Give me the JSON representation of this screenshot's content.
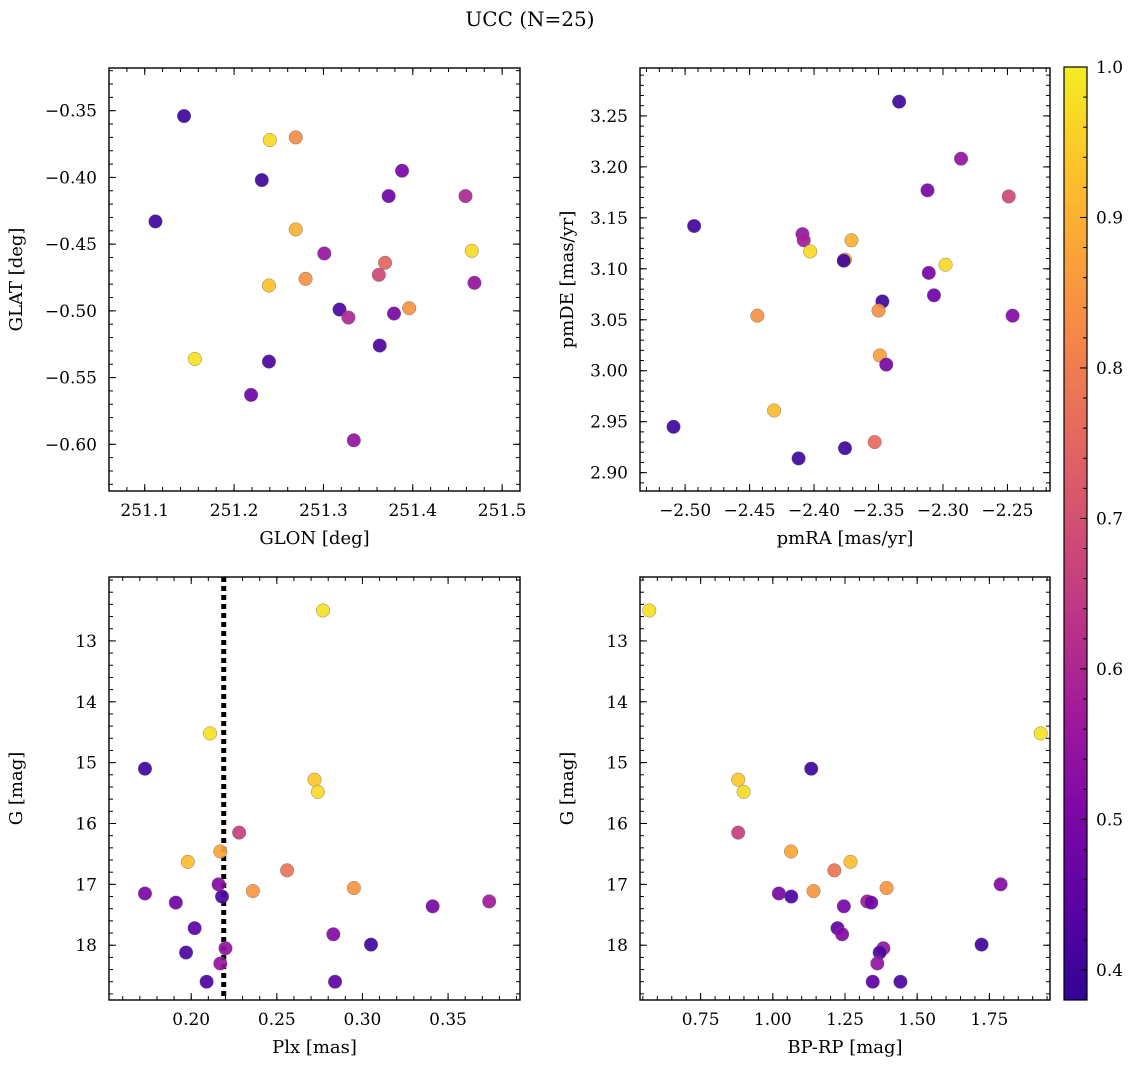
{
  "figure": {
    "title": "UCC (N=25)"
  },
  "colormap": {
    "name": "plasma",
    "range": [
      0.38,
      1.0
    ],
    "ticks": [
      0.4,
      0.5,
      0.6,
      0.7,
      0.8,
      0.9,
      1.0
    ],
    "tick_labels": [
      "0.4",
      "0.5",
      "0.6",
      "0.7",
      "0.8",
      "0.9",
      "1.0"
    ]
  },
  "chart_data": [
    {
      "type": "scatter",
      "panel": "top-left",
      "xlabel": "GLON [deg]",
      "ylabel": "GLAT [deg]",
      "xlim": [
        251.06,
        251.52
      ],
      "ylim": [
        -0.635,
        -0.318
      ],
      "yinverted": false,
      "xticks": [
        251.1,
        251.2,
        251.3,
        251.4,
        251.5
      ],
      "xtick_labels": [
        "251.1",
        "251.2",
        "251.3",
        "251.4",
        "251.5"
      ],
      "yticks": [
        -0.35,
        -0.4,
        -0.45,
        -0.5,
        -0.55,
        -0.6
      ],
      "ytick_labels": [
        "−0.35",
        "−0.40",
        "−0.45",
        "−0.50",
        "−0.55",
        "−0.60"
      ],
      "points": [
        {
          "x": 251.144,
          "y": -0.354,
          "c": 0.4
        },
        {
          "x": 251.112,
          "y": -0.433,
          "c": 0.4
        },
        {
          "x": 251.231,
          "y": -0.402,
          "c": 0.4
        },
        {
          "x": 251.24,
          "y": -0.372,
          "c": 0.97
        },
        {
          "x": 251.269,
          "y": -0.37,
          "c": 0.83
        },
        {
          "x": 251.388,
          "y": -0.395,
          "c": 0.5
        },
        {
          "x": 251.373,
          "y": -0.414,
          "c": 0.48
        },
        {
          "x": 251.459,
          "y": -0.414,
          "c": 0.6
        },
        {
          "x": 251.269,
          "y": -0.439,
          "c": 0.9
        },
        {
          "x": 251.466,
          "y": -0.455,
          "c": 0.97
        },
        {
          "x": 251.301,
          "y": -0.457,
          "c": 0.55
        },
        {
          "x": 251.369,
          "y": -0.464,
          "c": 0.75
        },
        {
          "x": 251.362,
          "y": -0.473,
          "c": 0.68
        },
        {
          "x": 251.28,
          "y": -0.476,
          "c": 0.84
        },
        {
          "x": 251.239,
          "y": -0.481,
          "c": 0.93
        },
        {
          "x": 251.469,
          "y": -0.479,
          "c": 0.55
        },
        {
          "x": 251.318,
          "y": -0.499,
          "c": 0.42
        },
        {
          "x": 251.396,
          "y": -0.498,
          "c": 0.84
        },
        {
          "x": 251.379,
          "y": -0.502,
          "c": 0.5
        },
        {
          "x": 251.328,
          "y": -0.505,
          "c": 0.6
        },
        {
          "x": 251.363,
          "y": -0.526,
          "c": 0.42
        },
        {
          "x": 251.156,
          "y": -0.536,
          "c": 0.98
        },
        {
          "x": 251.239,
          "y": -0.538,
          "c": 0.42
        },
        {
          "x": 251.219,
          "y": -0.563,
          "c": 0.48
        },
        {
          "x": 251.334,
          "y": -0.597,
          "c": 0.55
        }
      ]
    },
    {
      "type": "scatter",
      "panel": "top-right",
      "xlabel": "pmRA [mas/yr]",
      "ylabel": "pmDE [mas/yr]",
      "xlim": [
        -2.535,
        -2.217
      ],
      "ylim": [
        2.882,
        3.297
      ],
      "yinverted": false,
      "xticks": [
        -2.5,
        -2.45,
        -2.4,
        -2.35,
        -2.3,
        -2.25
      ],
      "xtick_labels": [
        "−2.50",
        "−2.45",
        "−2.40",
        "−2.35",
        "−2.30",
        "−2.25"
      ],
      "yticks": [
        2.9,
        2.95,
        3.0,
        3.05,
        3.1,
        3.15,
        3.2,
        3.25
      ],
      "ytick_labels": [
        "2.90",
        "2.95",
        "3.00",
        "3.05",
        "3.10",
        "3.15",
        "3.20",
        "3.25"
      ],
      "points": [
        {
          "x": -2.334,
          "y": 3.264,
          "c": 0.4
        },
        {
          "x": -2.286,
          "y": 3.208,
          "c": 0.55
        },
        {
          "x": -2.312,
          "y": 3.177,
          "c": 0.5
        },
        {
          "x": -2.249,
          "y": 3.171,
          "c": 0.68
        },
        {
          "x": -2.493,
          "y": 3.142,
          "c": 0.4
        },
        {
          "x": -2.409,
          "y": 3.134,
          "c": 0.55
        },
        {
          "x": -2.408,
          "y": 3.128,
          "c": 0.58
        },
        {
          "x": -2.371,
          "y": 3.128,
          "c": 0.9
        },
        {
          "x": -2.403,
          "y": 3.117,
          "c": 0.97
        },
        {
          "x": -2.376,
          "y": 3.109,
          "c": 0.9
        },
        {
          "x": -2.377,
          "y": 3.108,
          "c": 0.4
        },
        {
          "x": -2.298,
          "y": 3.104,
          "c": 0.97
        },
        {
          "x": -2.311,
          "y": 3.096,
          "c": 0.5
        },
        {
          "x": -2.307,
          "y": 3.074,
          "c": 0.48
        },
        {
          "x": -2.347,
          "y": 3.068,
          "c": 0.4
        },
        {
          "x": -2.35,
          "y": 3.059,
          "c": 0.84
        },
        {
          "x": -2.444,
          "y": 3.054,
          "c": 0.84
        },
        {
          "x": -2.246,
          "y": 3.054,
          "c": 0.52
        },
        {
          "x": -2.349,
          "y": 3.015,
          "c": 0.87
        },
        {
          "x": -2.344,
          "y": 3.006,
          "c": 0.5
        },
        {
          "x": -2.431,
          "y": 2.961,
          "c": 0.92
        },
        {
          "x": -2.509,
          "y": 2.945,
          "c": 0.4
        },
        {
          "x": -2.353,
          "y": 2.93,
          "c": 0.76
        },
        {
          "x": -2.376,
          "y": 2.924,
          "c": 0.4
        },
        {
          "x": -2.412,
          "y": 2.914,
          "c": 0.4
        }
      ]
    },
    {
      "type": "scatter",
      "panel": "bottom-left",
      "xlabel": "Plx [mas]",
      "ylabel": "G [mag]",
      "xlim": [
        0.152,
        0.392
      ],
      "ylim": [
        11.95,
        18.9
      ],
      "yinverted": true,
      "vline": 0.219,
      "xticks": [
        0.2,
        0.25,
        0.3,
        0.35
      ],
      "xtick_labels": [
        "0.20",
        "0.25",
        "0.30",
        "0.35"
      ],
      "yticks": [
        13,
        14,
        15,
        16,
        17,
        18
      ],
      "ytick_labels": [
        "13",
        "14",
        "15",
        "16",
        "17",
        "18"
      ],
      "points": [
        {
          "x": 0.277,
          "y": 12.5,
          "c": 0.98
        },
        {
          "x": 0.211,
          "y": 14.52,
          "c": 0.98
        },
        {
          "x": 0.173,
          "y": 15.1,
          "c": 0.4
        },
        {
          "x": 0.272,
          "y": 15.28,
          "c": 0.94
        },
        {
          "x": 0.274,
          "y": 15.48,
          "c": 0.97
        },
        {
          "x": 0.228,
          "y": 16.15,
          "c": 0.66
        },
        {
          "x": 0.217,
          "y": 16.46,
          "c": 0.88
        },
        {
          "x": 0.198,
          "y": 16.63,
          "c": 0.92
        },
        {
          "x": 0.256,
          "y": 16.77,
          "c": 0.78
        },
        {
          "x": 0.216,
          "y": 17.0,
          "c": 0.52
        },
        {
          "x": 0.295,
          "y": 17.06,
          "c": 0.85
        },
        {
          "x": 0.236,
          "y": 17.11,
          "c": 0.85
        },
        {
          "x": 0.173,
          "y": 17.15,
          "c": 0.5
        },
        {
          "x": 0.218,
          "y": 17.2,
          "c": 0.42
        },
        {
          "x": 0.374,
          "y": 17.28,
          "c": 0.57
        },
        {
          "x": 0.191,
          "y": 17.3,
          "c": 0.48
        },
        {
          "x": 0.341,
          "y": 17.36,
          "c": 0.5
        },
        {
          "x": 0.202,
          "y": 17.72,
          "c": 0.45
        },
        {
          "x": 0.283,
          "y": 17.82,
          "c": 0.52
        },
        {
          "x": 0.305,
          "y": 17.99,
          "c": 0.4
        },
        {
          "x": 0.22,
          "y": 18.05,
          "c": 0.55
        },
        {
          "x": 0.197,
          "y": 18.12,
          "c": 0.42
        },
        {
          "x": 0.217,
          "y": 18.3,
          "c": 0.55
        },
        {
          "x": 0.284,
          "y": 18.6,
          "c": 0.45
        },
        {
          "x": 0.209,
          "y": 18.6,
          "c": 0.42
        }
      ]
    },
    {
      "type": "scatter",
      "panel": "bottom-right",
      "xlabel": "BP-RP [mag]",
      "ylabel": "G [mag]",
      "xlim": [
        0.54,
        1.96
      ],
      "ylim": [
        11.95,
        18.9
      ],
      "yinverted": true,
      "xticks": [
        0.75,
        1.0,
        1.25,
        1.5,
        1.75
      ],
      "xtick_labels": [
        "0.75",
        "1.00",
        "1.25",
        "1.50",
        "1.75"
      ],
      "yticks": [
        13,
        14,
        15,
        16,
        17,
        18
      ],
      "ytick_labels": [
        "13",
        "14",
        "15",
        "16",
        "17",
        "18"
      ],
      "points": [
        {
          "x": 0.572,
          "y": 12.5,
          "c": 0.98
        },
        {
          "x": 1.928,
          "y": 14.52,
          "c": 0.98
        },
        {
          "x": 1.133,
          "y": 15.1,
          "c": 0.4
        },
        {
          "x": 0.88,
          "y": 15.28,
          "c": 0.94
        },
        {
          "x": 0.899,
          "y": 15.48,
          "c": 0.97
        },
        {
          "x": 0.88,
          "y": 16.15,
          "c": 0.66
        },
        {
          "x": 1.063,
          "y": 16.46,
          "c": 0.88
        },
        {
          "x": 1.269,
          "y": 16.63,
          "c": 0.92
        },
        {
          "x": 1.213,
          "y": 16.77,
          "c": 0.78
        },
        {
          "x": 1.789,
          "y": 17.0,
          "c": 0.52
        },
        {
          "x": 1.394,
          "y": 17.06,
          "c": 0.85
        },
        {
          "x": 1.141,
          "y": 17.11,
          "c": 0.85
        },
        {
          "x": 1.021,
          "y": 17.15,
          "c": 0.5
        },
        {
          "x": 1.064,
          "y": 17.2,
          "c": 0.42
        },
        {
          "x": 1.327,
          "y": 17.28,
          "c": 0.57
        },
        {
          "x": 1.341,
          "y": 17.3,
          "c": 0.48
        },
        {
          "x": 1.246,
          "y": 17.36,
          "c": 0.5
        },
        {
          "x": 1.224,
          "y": 17.72,
          "c": 0.45
        },
        {
          "x": 1.24,
          "y": 17.82,
          "c": 0.52
        },
        {
          "x": 1.723,
          "y": 17.99,
          "c": 0.4
        },
        {
          "x": 1.383,
          "y": 18.05,
          "c": 0.55
        },
        {
          "x": 1.37,
          "y": 18.12,
          "c": 0.42
        },
        {
          "x": 1.362,
          "y": 18.3,
          "c": 0.55
        },
        {
          "x": 1.346,
          "y": 18.6,
          "c": 0.45
        },
        {
          "x": 1.442,
          "y": 18.6,
          "c": 0.42
        }
      ]
    }
  ]
}
